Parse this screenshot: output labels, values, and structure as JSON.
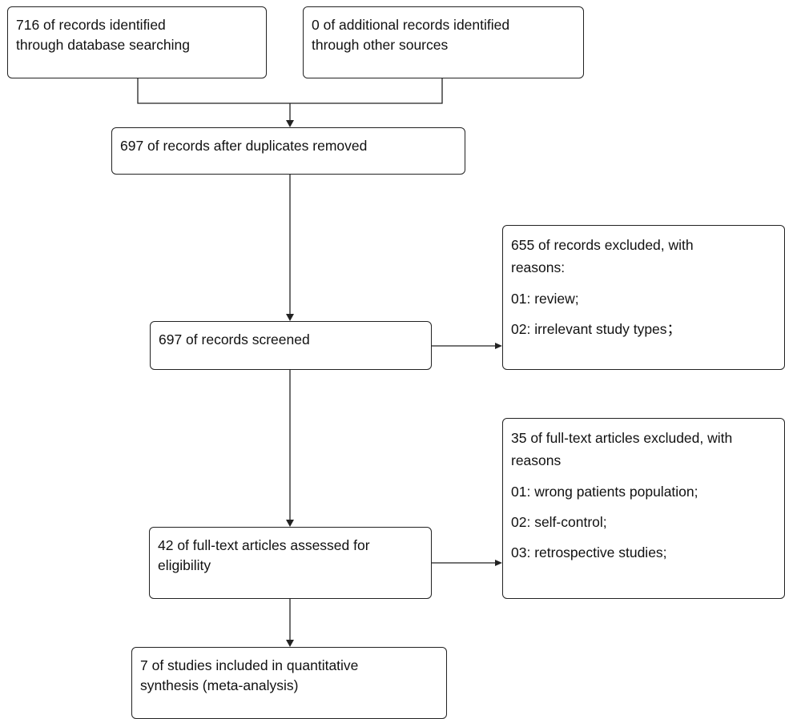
{
  "boxes": {
    "database_search": {
      "lines": [
        "716 of records identified",
        "through database searching"
      ]
    },
    "other_sources": {
      "lines": [
        "0 of additional records identified",
        "through other sources"
      ]
    },
    "after_duplicates": {
      "lines": [
        "697 of records after duplicates removed"
      ]
    },
    "screened": {
      "lines": [
        "697 of records screened"
      ]
    },
    "screen_excluded": {
      "head": [
        "655 of records excluded, with",
        "reasons:"
      ],
      "reasons": [
        "01: review;",
        "02: irrelevant study types；"
      ]
    },
    "full_text_assessed": {
      "lines": [
        "42 of full-text articles assessed for",
        "eligibility"
      ]
    },
    "full_text_excluded": {
      "head": [
        "35 of full-text articles excluded, with",
        "reasons"
      ],
      "reasons": [
        "01: wrong patients population;",
        "02: self-control;",
        "03: retrospective studies;"
      ]
    },
    "included": {
      "lines": [
        "7 of studies included in quantitative",
        "synthesis (meta-analysis)"
      ]
    }
  }
}
